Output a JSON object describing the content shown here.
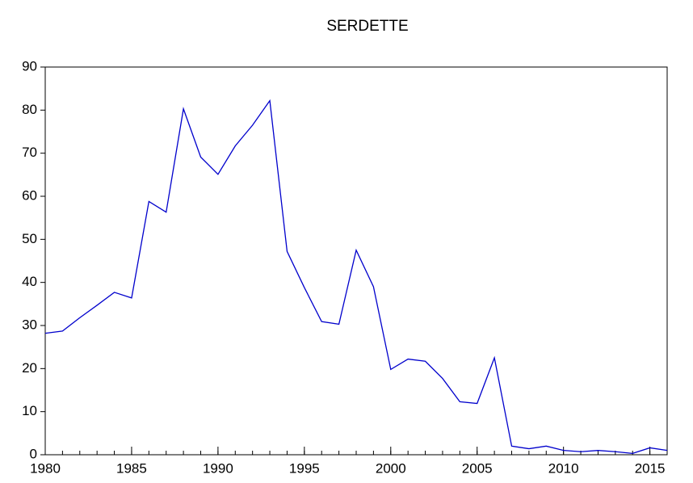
{
  "chart_data": {
    "type": "line",
    "title": "SERDETTE",
    "x": [
      1980,
      1981,
      1982,
      1983,
      1984,
      1985,
      1986,
      1987,
      1988,
      1989,
      1990,
      1991,
      1992,
      1993,
      1994,
      1995,
      1996,
      1997,
      1998,
      1999,
      2000,
      2001,
      2002,
      2003,
      2004,
      2005,
      2006,
      2007,
      2008,
      2009,
      2010,
      2011,
      2012,
      2013,
      2014,
      2015,
      2016
    ],
    "series": [
      {
        "name": "SERDETTE",
        "color": "#0000cc",
        "values": [
          28.2,
          28.7,
          31.8,
          34.7,
          37.7,
          36.4,
          58.8,
          56.3,
          80.3,
          69.1,
          65.1,
          71.7,
          76.5,
          82.2,
          47.2,
          38.8,
          30.9,
          30.3,
          47.5,
          39.0,
          19.8,
          22.2,
          21.7,
          17.7,
          12.3,
          11.9,
          22.5,
          2.0,
          1.4,
          2.0,
          1.0,
          0.7,
          1.0,
          0.7,
          0.3,
          1.6,
          1.0
        ]
      }
    ],
    "xlim": [
      1980,
      2016
    ],
    "xticks": [
      1980,
      1985,
      1990,
      1995,
      2000,
      2005,
      2010,
      2015
    ],
    "ylim": [
      0,
      90
    ],
    "yticks": [
      0,
      10,
      20,
      30,
      40,
      50,
      60,
      70,
      80,
      90
    ]
  }
}
